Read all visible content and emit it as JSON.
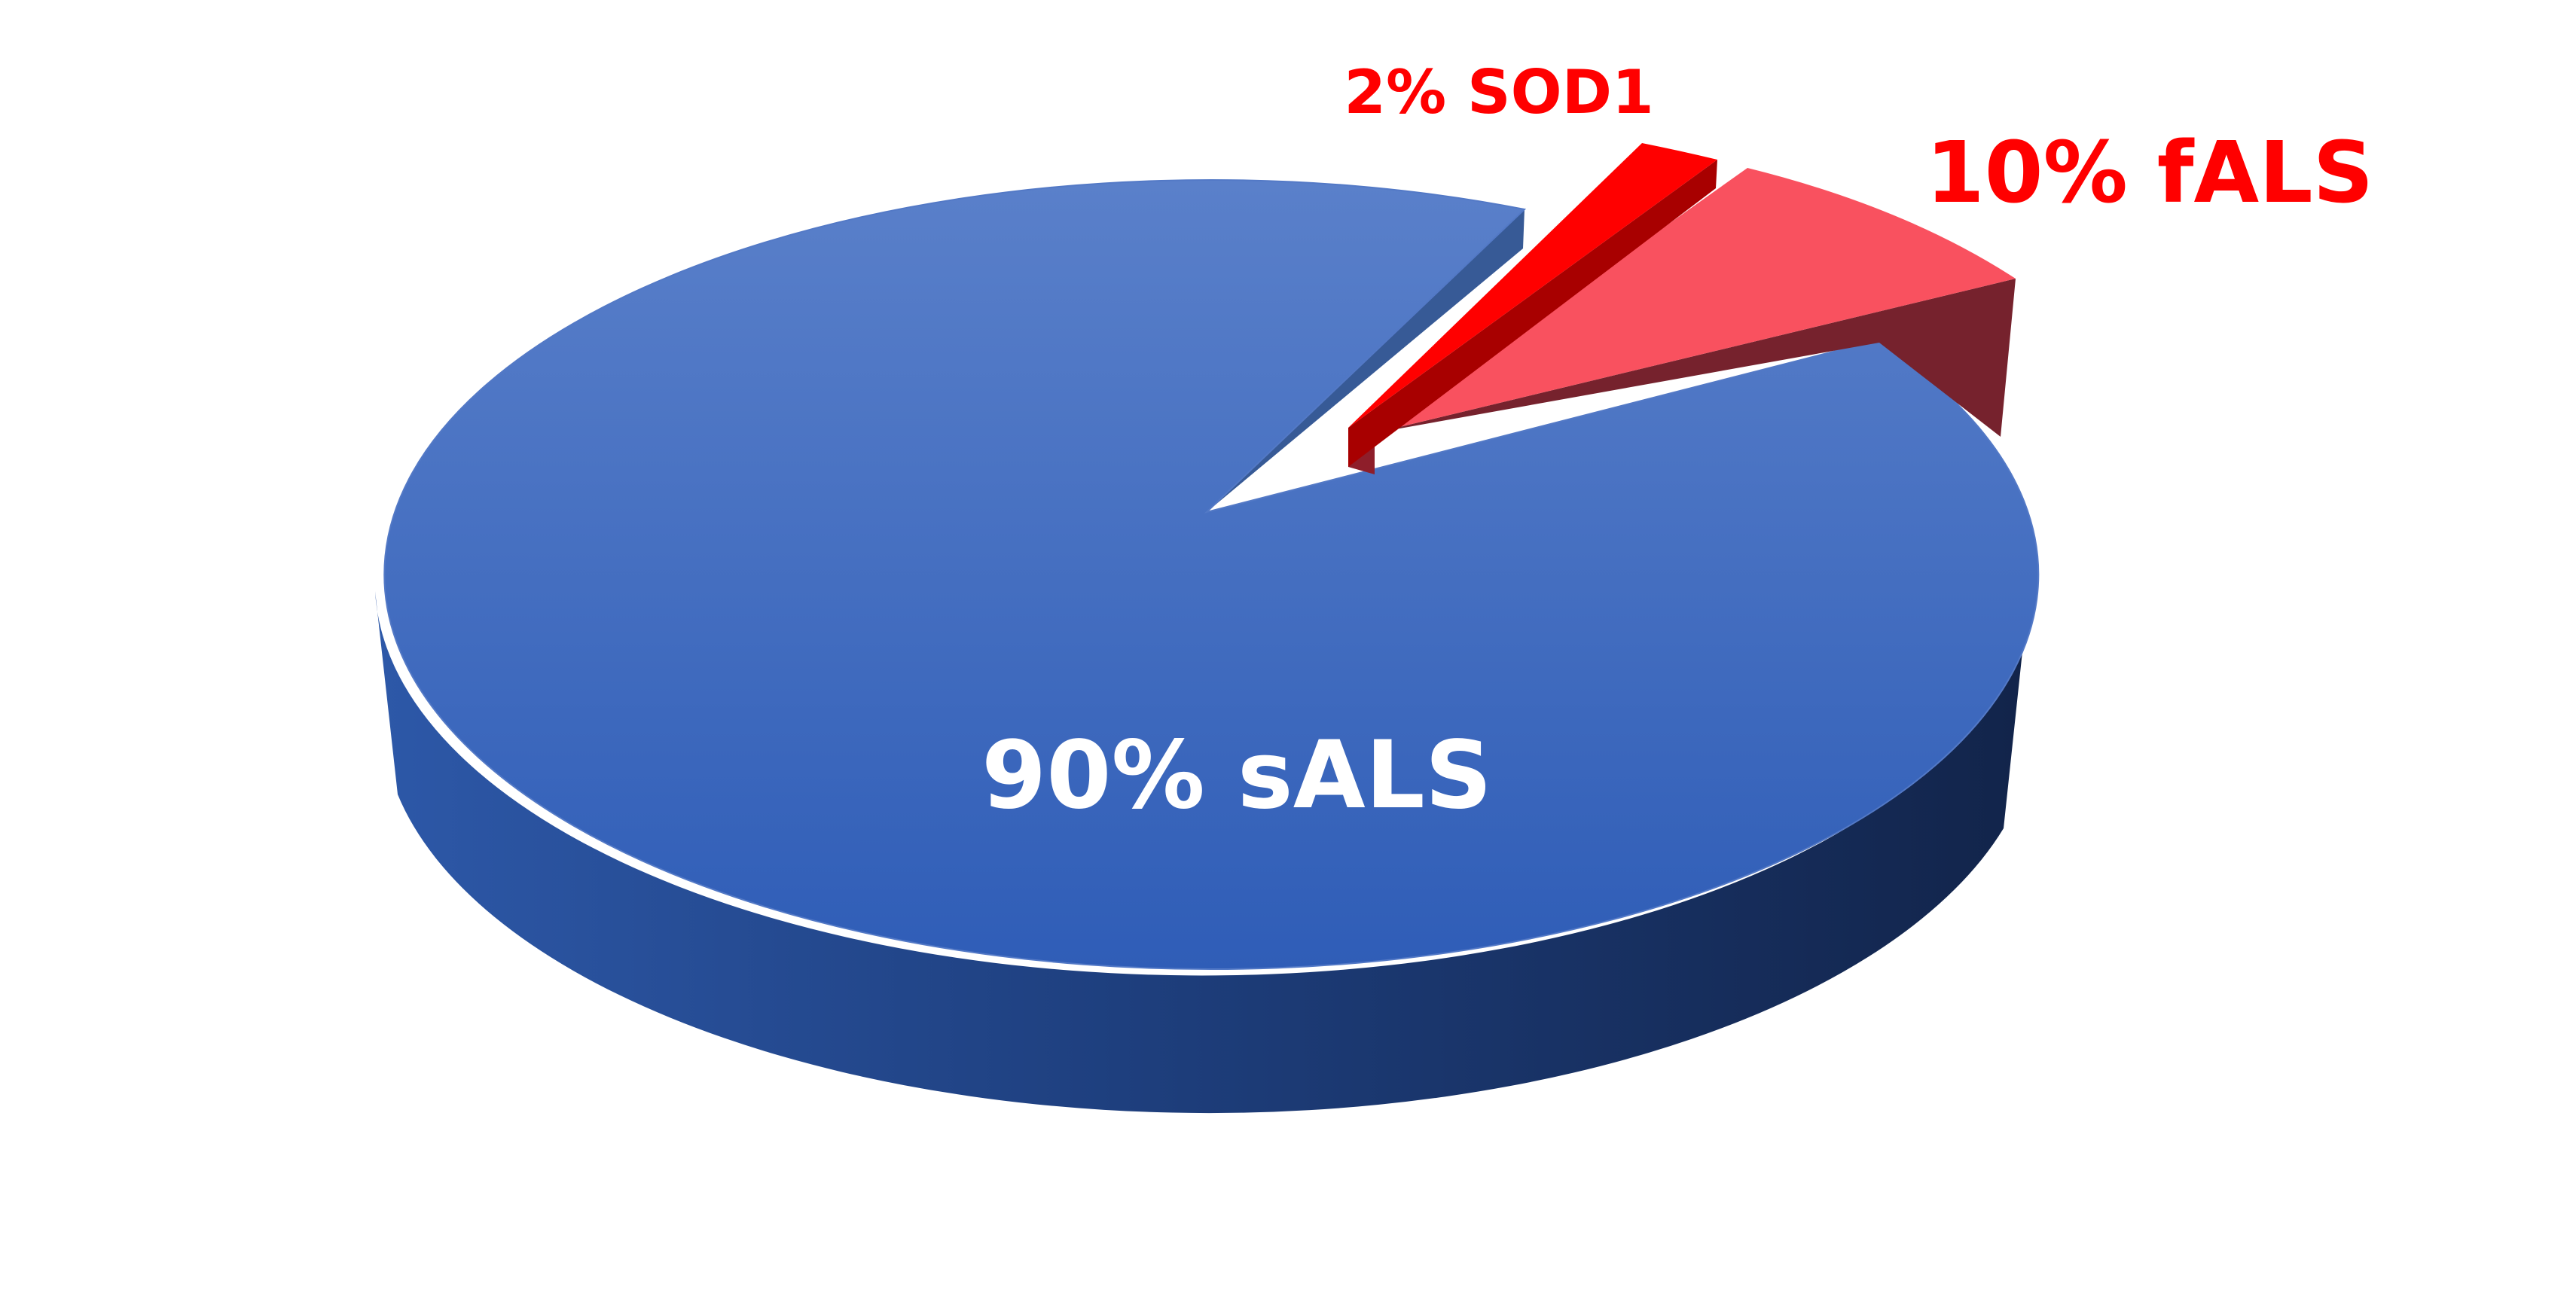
{
  "chart_data": {
    "type": "pie",
    "style": "3d",
    "title": "",
    "slices": [
      {
        "label": "90% sALS",
        "value": 90,
        "color": "#3F6CC4"
      },
      {
        "label": "10% fALS",
        "value": 10,
        "color": "#F9515F"
      },
      {
        "label": "2% SOD1",
        "value": 2,
        "color": "#FF0000"
      }
    ],
    "label_colors": {
      "sALS": "#FFFFFF",
      "fALS": "#FF0000",
      "SOD1": "#FF0000"
    }
  }
}
